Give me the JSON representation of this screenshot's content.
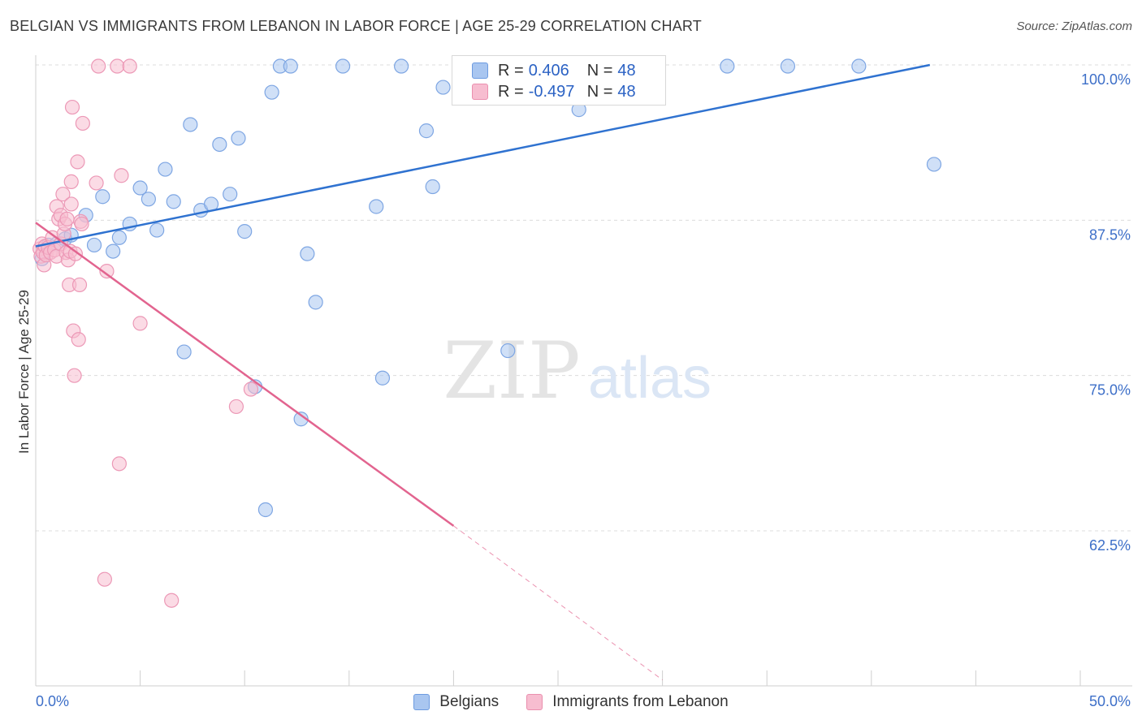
{
  "header": {
    "title": "BELGIAN VS IMMIGRANTS FROM LEBANON IN LABOR FORCE | AGE 25-29 CORRELATION CHART",
    "source": "Source: ZipAtlas.com"
  },
  "watermark": {
    "zip": "ZIP",
    "atlas": "atlas"
  },
  "legend": {
    "rows": [
      {
        "r_label": "R =",
        "r_value": "0.406",
        "n_label": "N =",
        "n_value": "48",
        "color": "#a9c6f0",
        "border": "#6d9be0"
      },
      {
        "r_label": "R =",
        "r_value": "-0.497",
        "n_label": "N =",
        "n_value": "48",
        "color": "#f7bdd0",
        "border": "#ea8fae"
      }
    ],
    "bottom": [
      {
        "label": "Belgians",
        "color": "#a9c6f0",
        "border": "#6d9be0"
      },
      {
        "label": "Immigrants from Lebanon",
        "color": "#f7bdd0",
        "border": "#ea8fae"
      }
    ]
  },
  "chart_data": {
    "type": "scatter",
    "title": "BELGIAN VS IMMIGRANTS FROM LEBANON IN LABOR FORCE | AGE 25-29 CORRELATION CHART",
    "ylabel": "In Labor Force | Age 25-29",
    "xlim": [
      0,
      50
    ],
    "ylim": [
      50,
      101.5
    ],
    "x_tick_labels": [
      "0.0%",
      "50.0%"
    ],
    "y_ticks": [
      62.5,
      75.0,
      87.5,
      100.0
    ],
    "y_tick_labels": [
      "62.5%",
      "75.0%",
      "87.5%",
      "100.0%"
    ],
    "grid": true,
    "series": [
      {
        "name": "Belgians",
        "color": "#4a86d9",
        "fill": "#a9c6f0",
        "points": [
          [
            0.3,
            84.4
          ],
          [
            0.6,
            85.5
          ],
          [
            1.0,
            85.6
          ],
          [
            1.4,
            86.0
          ],
          [
            1.7,
            86.3
          ],
          [
            2.4,
            87.9
          ],
          [
            2.8,
            85.5
          ],
          [
            3.2,
            89.4
          ],
          [
            3.7,
            85.0
          ],
          [
            4.0,
            86.1
          ],
          [
            4.5,
            87.2
          ],
          [
            5.0,
            90.1
          ],
          [
            5.4,
            89.2
          ],
          [
            5.8,
            86.7
          ],
          [
            6.2,
            91.6
          ],
          [
            6.6,
            89.0
          ],
          [
            7.1,
            76.9
          ],
          [
            7.4,
            95.2
          ],
          [
            7.9,
            88.3
          ],
          [
            8.4,
            88.8
          ],
          [
            8.8,
            93.6
          ],
          [
            9.3,
            89.6
          ],
          [
            9.7,
            94.1
          ],
          [
            10.0,
            86.6
          ],
          [
            10.5,
            74.1
          ],
          [
            11.0,
            64.2
          ],
          [
            11.3,
            97.8
          ],
          [
            11.7,
            99.9
          ],
          [
            12.2,
            99.9
          ],
          [
            12.7,
            71.5
          ],
          [
            13.0,
            84.8
          ],
          [
            13.4,
            80.9
          ],
          [
            14.7,
            99.9
          ],
          [
            16.3,
            88.6
          ],
          [
            16.6,
            74.8
          ],
          [
            17.5,
            99.9
          ],
          [
            18.7,
            94.7
          ],
          [
            19.0,
            90.2
          ],
          [
            19.5,
            98.2
          ],
          [
            22.6,
            77.0
          ],
          [
            24.4,
            99.9
          ],
          [
            25.5,
            99.9
          ],
          [
            26.0,
            96.4
          ],
          [
            28.0,
            99.9
          ],
          [
            33.1,
            99.9
          ],
          [
            36.0,
            99.9
          ],
          [
            39.4,
            99.9
          ],
          [
            43.0,
            92.0
          ]
        ]
      },
      {
        "name": "Immigrants from Lebanon",
        "color": "#e0648f",
        "fill": "#f7bdd0",
        "points": [
          [
            0.2,
            85.2
          ],
          [
            0.25,
            84.6
          ],
          [
            0.3,
            85.6
          ],
          [
            0.35,
            84.9
          ],
          [
            0.4,
            83.9
          ],
          [
            0.45,
            85.4
          ],
          [
            0.5,
            84.7
          ],
          [
            0.6,
            85.3
          ],
          [
            0.7,
            84.9
          ],
          [
            0.8,
            86.1
          ],
          [
            0.9,
            85.1
          ],
          [
            1.0,
            88.6
          ],
          [
            1.0,
            84.6
          ],
          [
            1.1,
            87.6
          ],
          [
            1.2,
            85.6
          ],
          [
            1.2,
            87.9
          ],
          [
            1.3,
            89.6
          ],
          [
            1.35,
            86.4
          ],
          [
            1.4,
            87.2
          ],
          [
            1.45,
            84.9
          ],
          [
            1.5,
            87.6
          ],
          [
            1.55,
            84.3
          ],
          [
            1.6,
            82.3
          ],
          [
            1.65,
            85.0
          ],
          [
            1.7,
            88.8
          ],
          [
            1.7,
            90.6
          ],
          [
            1.75,
            96.6
          ],
          [
            1.8,
            78.6
          ],
          [
            1.85,
            75.0
          ],
          [
            1.9,
            84.8
          ],
          [
            2.0,
            92.2
          ],
          [
            2.05,
            77.9
          ],
          [
            2.1,
            82.3
          ],
          [
            2.15,
            87.4
          ],
          [
            2.2,
            87.2
          ],
          [
            2.25,
            95.3
          ],
          [
            2.9,
            90.5
          ],
          [
            3.0,
            99.9
          ],
          [
            3.4,
            83.4
          ],
          [
            3.9,
            99.9
          ],
          [
            4.0,
            67.9
          ],
          [
            4.1,
            91.1
          ],
          [
            4.5,
            99.9
          ],
          [
            5.0,
            79.2
          ],
          [
            6.5,
            56.9
          ],
          [
            3.3,
            58.6
          ],
          [
            9.6,
            72.5
          ],
          [
            10.3,
            73.9
          ]
        ]
      }
    ],
    "trend_lines": [
      {
        "series": "Belgians",
        "x": [
          0.0,
          42.8
        ],
        "y": [
          85.4,
          100.0
        ]
      },
      {
        "series": "Immigrants from Lebanon",
        "x": [
          0.0,
          20.0
        ],
        "y": [
          87.3,
          62.9
        ],
        "dashed_extension": {
          "x": [
            20.0,
            30.0
          ],
          "y": [
            62.9,
            50.5
          ]
        }
      }
    ]
  }
}
